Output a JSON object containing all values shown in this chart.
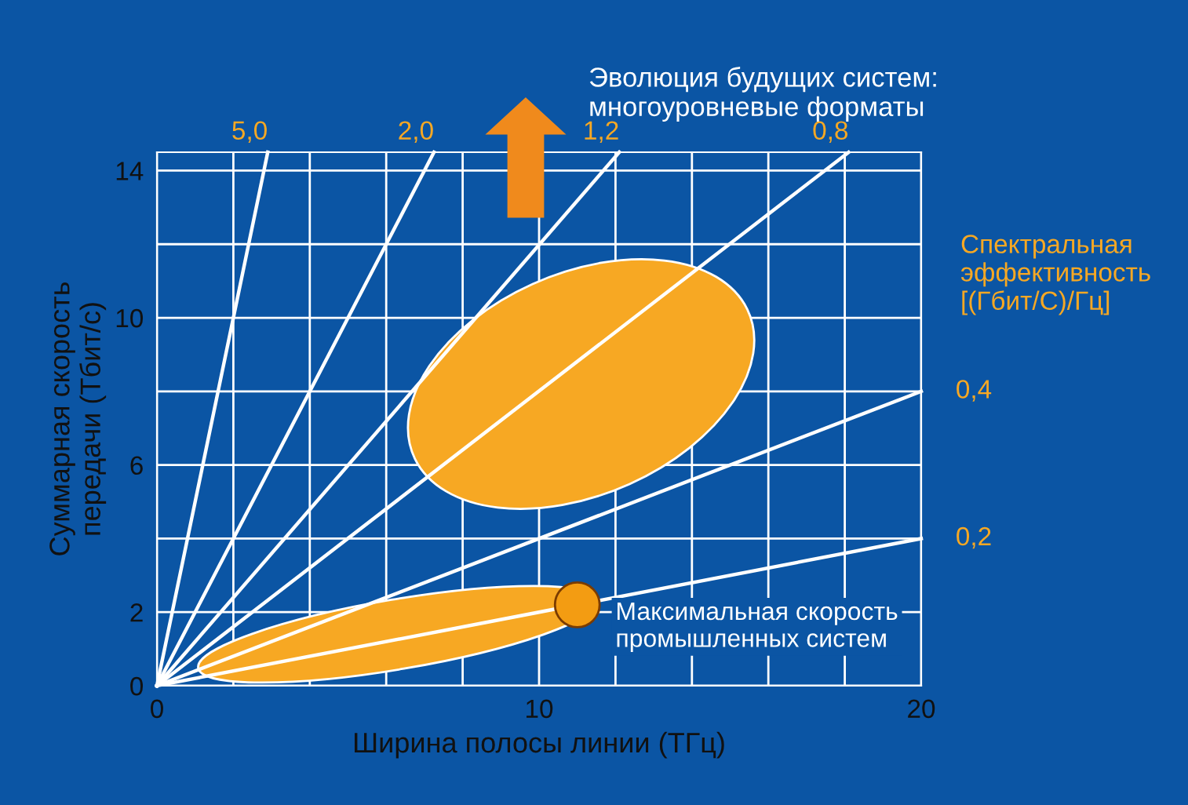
{
  "chart_data": {
    "type": "line",
    "xlabel": "Ширина полосы линии (ТГц)",
    "ylabel": "Суммарная скорость\nпередачи (Тбит/с)",
    "xlim": [
      0,
      20
    ],
    "ylim": [
      0,
      14.5
    ],
    "xticks": [
      0,
      {
        "value": 2,
        "label": null
      },
      {
        "value": 4,
        "label": null
      },
      {
        "value": 6,
        "label": null
      },
      {
        "value": 8,
        "label": null
      },
      10,
      {
        "value": 12,
        "label": null
      },
      {
        "value": 14,
        "label": null
      },
      {
        "value": 16,
        "label": null
      },
      {
        "value": 18,
        "label": null
      },
      20
    ],
    "yticks": [
      0,
      2,
      {
        "value": 4,
        "label": null
      },
      6,
      {
        "value": 8,
        "label": null
      },
      10,
      {
        "value": 12,
        "label": null
      },
      14
    ],
    "grid": true,
    "marker": "none",
    "line_style": "solid",
    "series": [
      {
        "name": "5,0",
        "color": "#ffffff",
        "x": [
          0,
          2.9
        ],
        "values": [
          0,
          14.5
        ]
      },
      {
        "name": "2,0",
        "color": "#ffffff",
        "x": [
          0,
          7.25
        ],
        "values": [
          0,
          14.5
        ]
      },
      {
        "name": "1,2",
        "color": "#ffffff",
        "x": [
          0,
          12.1
        ],
        "values": [
          0,
          14.5
        ]
      },
      {
        "name": "0,8",
        "color": "#ffffff",
        "x": [
          0,
          18.1
        ],
        "values": [
          0,
          14.5
        ]
      },
      {
        "name": "0,4",
        "color": "#ffffff",
        "x": [
          0,
          20
        ],
        "values": [
          0,
          8
        ]
      },
      {
        "name": "0,2",
        "color": "#ffffff",
        "x": [
          0,
          20
        ],
        "values": [
          0,
          4
        ]
      },
      {
        "type": "scatter",
        "marker": "circle",
        "color": "#f39c12",
        "x": [
          11
        ],
        "values": [
          2.2
        ]
      }
    ],
    "annotations": [
      {
        "text": "Максимальная скорость\nпромышленных систем",
        "x": 11,
        "y": 2.2
      },
      "Эволюция будущих систем:\nмногоуровневые форматы",
      "Спектральная\nэффективность\n[(Гбит/С)/Гц]"
    ]
  }
}
